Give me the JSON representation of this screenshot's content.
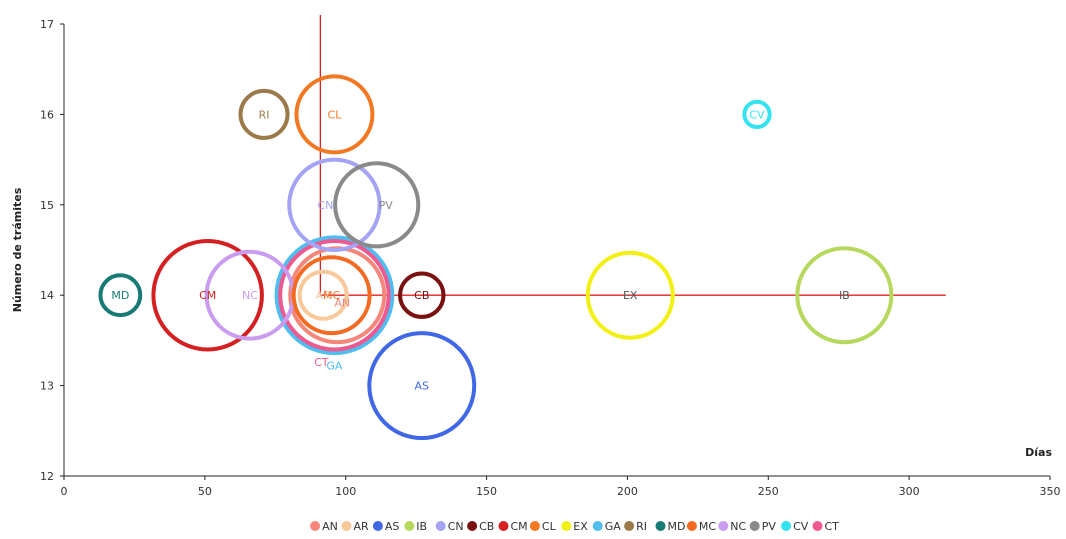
{
  "chart_data": {
    "type": "bubble",
    "title": "",
    "xlabel": "Días",
    "ylabel": "Número de trámites",
    "xlim": [
      0,
      350
    ],
    "ylim": [
      12,
      17
    ],
    "xticks": [
      0,
      50,
      100,
      150,
      200,
      250,
      300,
      350
    ],
    "yticks": [
      12,
      13,
      14,
      15,
      16,
      17
    ],
    "grid": false,
    "legend_position": "bottom",
    "reference_lines": {
      "x": 91,
      "y": 14,
      "x_line_ymax": 17.1,
      "y_line_xmax": 313
    },
    "series": [
      {
        "name": "AN",
        "x": 97,
        "y": 14,
        "size": 0.52,
        "color": "#f4877a",
        "label_dx": 5,
        "label_dy": -0.08
      },
      {
        "name": "AR",
        "x": 92,
        "y": 14,
        "size": 0.26,
        "color": "#f9c89b",
        "label_dx": 0,
        "label_dy": 0
      },
      {
        "name": "AS",
        "x": 127,
        "y": 13,
        "size": 0.58,
        "color": "#3f67e6",
        "label_dx": 0,
        "label_dy": 0
      },
      {
        "name": "IB",
        "x": 277,
        "y": 14,
        "size": 0.52,
        "color": "#b6d85d",
        "label_dx": 0,
        "label_dy": 0
      },
      {
        "name": "CN",
        "x": 96,
        "y": 15,
        "size": 0.5,
        "color": "#a4a3f5",
        "label_dx": -9,
        "label_dy": 0
      },
      {
        "name": "CB",
        "x": 127,
        "y": 14,
        "size": 0.24,
        "color": "#7a1010",
        "label_dx": 0,
        "label_dy": 0
      },
      {
        "name": "CM",
        "x": 51,
        "y": 14,
        "size": 0.6,
        "color": "#d42020",
        "label_dx": 0,
        "label_dy": 0
      },
      {
        "name": "CL",
        "x": 96,
        "y": 16,
        "size": 0.42,
        "color": "#f47722",
        "label_dx": 0,
        "label_dy": 0
      },
      {
        "name": "EX",
        "x": 201,
        "y": 14,
        "size": 0.47,
        "color": "#f2ef12",
        "label_dx": 0,
        "label_dy": 0
      },
      {
        "name": "GA",
        "x": 96,
        "y": 14,
        "size": 0.64,
        "color": "#4fbdf0",
        "label_dx": 0,
        "label_dy": -0.78
      },
      {
        "name": "RI",
        "x": 71,
        "y": 16,
        "size": 0.26,
        "color": "#9b7a4a",
        "label_dx": 0,
        "label_dy": 0
      },
      {
        "name": "MD",
        "x": 20,
        "y": 14,
        "size": 0.22,
        "color": "#177a74",
        "label_dx": 0,
        "label_dy": 0
      },
      {
        "name": "MC",
        "x": 95,
        "y": 14,
        "size": 0.42,
        "color": "#f46a22",
        "label_dx": 0,
        "label_dy": 0
      },
      {
        "name": "NC",
        "x": 66,
        "y": 14,
        "size": 0.48,
        "color": "#c99cf0",
        "label_dx": 0,
        "label_dy": 0
      },
      {
        "name": "PV",
        "x": 111,
        "y": 15,
        "size": 0.46,
        "color": "#8a8a8a",
        "label_dx": 9,
        "label_dy": 0
      },
      {
        "name": "CV",
        "x": 246,
        "y": 16,
        "size": 0.14,
        "color": "#33e3f0",
        "label_dx": 0,
        "label_dy": 0
      },
      {
        "name": "CT",
        "x": 96,
        "y": 14,
        "size": 0.6,
        "color": "#ee5a8f",
        "label_dx": -13,
        "label_dy": -0.74
      }
    ]
  }
}
